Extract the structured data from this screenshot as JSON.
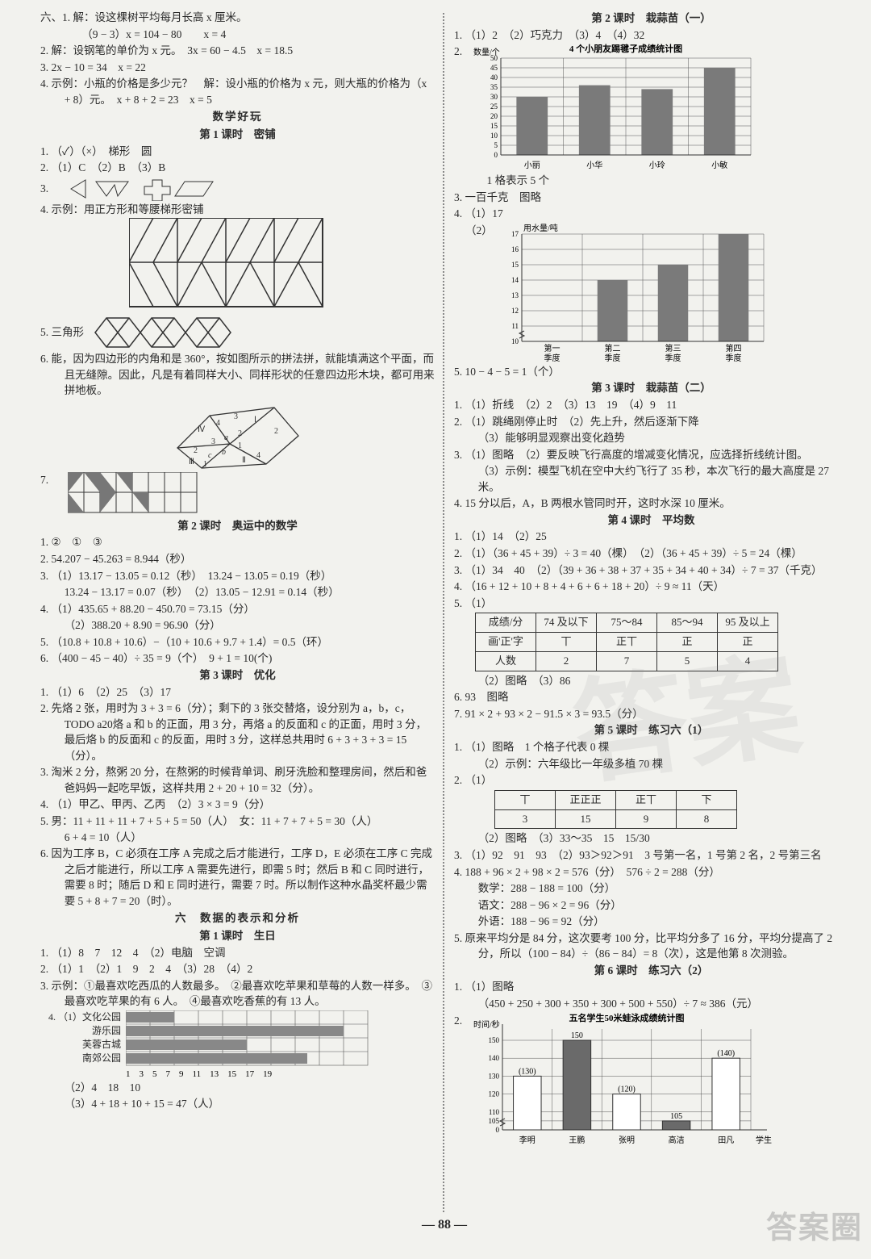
{
  "left": {
    "sec61": "六、1. 解：设这棵树平均每月长高 x 厘米。",
    "sec61b": "（9 − 3）x = 104 − 80　　x = 4",
    "sec62": "2. 解：设钢笔的单价为 x 元。　3x = 60 − 4.5　x = 18.5",
    "sec63": "3. 2x − 10 = 34　x = 22",
    "sec64": "4. 示例：小瓶的价格是多少元？　解：设小瓶的价格为 x 元，则大瓶的价格为（x + 8）元。　x + 8 + 2 = 23　x = 5",
    "fun_title": "数学好玩",
    "fun_l1": "第 1 课时　密铺",
    "f1_1": "1. （✓）（×）　梯形　圆",
    "f1_2": "2. （1）C　（2）B　（3）B",
    "f1_3": "3.",
    "f1_4": "4. 示例：用正方形和等腰梯形密铺",
    "f1_5": "5. 三角形",
    "f1_6": "6. 能，因为四边形的内角和是 360°，按如图所示的拼法拼，就能填满这个平面，而且无缝隙。因此，凡是有着同样大小、同样形状的任意四边形木块，都可用来拼地板。",
    "f1_7": "7.",
    "fun_l2": "第 2 课时　奥运中的数学",
    "f2_1": "1. ②　①　③",
    "f2_2": "2. 54.207 − 45.263 = 8.944（秒）",
    "f2_3": "3. （1）13.17 − 13.05 = 0.12（秒）　13.24 − 13.05 = 0.19（秒）",
    "f2_3b": "13.24 − 13.17 = 0.07（秒）　（2）13.05 − 12.91 = 0.14（秒）",
    "f2_4": "4. （1）435.65 + 88.20 − 450.70 = 73.15（分）",
    "f2_4b": "（2）388.20 + 8.90 = 96.90（分）",
    "f2_5": "5. （10.8 + 10.8 + 10.6）−（10 + 10.6 + 9.7 + 1.4）= 0.5（环）",
    "f2_6": "6. （400 − 45 − 40）÷ 35 = 9（个）　9 + 1 = 10(个)",
    "fun_l3": "第 3 课时　优化",
    "f3_1": "1. （1）6　（2）25　（3）17",
    "f3_2": "2. 先烙 2 张，用时为 3 + 3 = 6（分）；剩下的 3 张交替烙，设分别为 a，b，c，TODO a20烙 a 和 b 的正面，用 3 分，再烙 a 的反面和 c 的正面，用时 3 分，最后烙 b 的反面和 c 的反面，用时 3 分，这样总共用时 6 + 3 + 3 + 3 = 15（分）。",
    "f3_3": "3. 淘米 2 分，熬粥 20 分，在熬粥的时候背单词、刷牙洗脸和整理房间，然后和爸爸妈妈一起吃早饭，这样共用 2 + 20 + 10 = 32（分）。",
    "f3_4": "4. （1）甲乙、甲丙、乙丙　（2）3 × 3 = 9（分）",
    "f3_5": "5. 男：11 + 11 + 11 + 7 + 5 + 5 = 50（人）　女：11 + 7 + 7 + 5 = 30（人）\n6 + 4 = 10（人）",
    "f3_6": "6. 因为工序 B，C 必须在工序 A 完成之后才能进行，工序 D，E 必须在工序 C 完成之后才能进行，所以工序 A 需要先进行，即需 5 时；然后 B 和 C 同时进行，需要 8 时；随后 D 和 E 同时进行，需要 7 时。所以制作这种水晶奖杯最少需要 5 + 8 + 7 = 20（时）。",
    "six_title": "六　数据的表示和分析",
    "six_l1": "第 1 课时　生日",
    "s1_1": "1. （1）8　7　12　4　（2）电脑　空调",
    "s1_2": "2. （1）1　（2）1　9　2　4　（3）28　（4）2",
    "s1_3": "3. 示例：①最喜欢吃西瓜的人数最多。　②最喜欢吃苹果和草莓的人数一样多。　③最喜欢吃苹果的有 6 人。　④最喜欢吃香蕉的有 13 人。",
    "s1_4": "4. （1）文化公园",
    "s1_4a": "游乐园",
    "s1_4b": "芙蓉古城",
    "s1_4c": "南郊公园",
    "s1_4x": "1　3　5　7　9　11　13　15　17　19",
    "s1_4_2": "（2）4　18　10",
    "s1_4_3": "（3）4 + 18 + 10 + 15 = 47（人）"
  },
  "right": {
    "r_l2": "第 2 课时　栽蒜苗（一）",
    "r2_1": "1. （1）2　（2）巧克力　（3）4　（4）32",
    "r2_2t": "2.",
    "chart1_title": "4 个小朋友踢毽子成绩统计图",
    "chart1_ylabel": "数量/个",
    "chart1_y": [
      0,
      5,
      10,
      15,
      20,
      25,
      30,
      35,
      40,
      45,
      50
    ],
    "chart1_cats": [
      "小丽",
      "小华",
      "小玲",
      "小敏"
    ],
    "chart1_vals": [
      30,
      36,
      34,
      45
    ],
    "chart1_bar": "#7a7a7a",
    "r2_2n": "1 格表示 5 个",
    "r2_3": "3. 一百千克　图略",
    "r2_4_1": "4. （1）17",
    "r2_4_2": "（2）",
    "chart2_ylabel": "用水量/吨",
    "chart2_y": [
      10,
      11,
      12,
      13,
      14,
      15,
      16,
      17
    ],
    "chart2_cats": [
      "第一季度",
      "第二季度",
      "第三季度",
      "第四季度"
    ],
    "chart2_vals": [
      10,
      14,
      15,
      17
    ],
    "chart2_bar": "#7a7a7a",
    "r2_5": "5. 10 − 4 − 5 = 1（个）",
    "r_l3": "第 3 课时　栽蒜苗（二）",
    "r3_1": "1. （1）折线　（2）2　（3）13　19　（4）9　11",
    "r3_2": "2. （1）跳绳刚停止时　（2）先上升，然后逐渐下降",
    "r3_2b": "（3）能够明显观察出变化趋势",
    "r3_3": "3. （1）图略　（2）要反映飞行高度的增减变化情况，应选择折线统计图。",
    "r3_3b": "（3）示例：模型飞机在空中大约飞行了 35 秒，本次飞行的最大高度是 27 米。",
    "r3_4": "4. 15 分以后，A，B 两根水管同时开，这时水深 10 厘米。",
    "r_l4": "第 4 课时　平均数",
    "r4_1": "1. （1）14　（2）25",
    "r4_2": "2. （1）（36 + 45 + 39）÷ 3 = 40（棵）　（2）（36 + 45 + 39）÷ 5 = 24（棵）",
    "r4_3": "3. （1）34　40　（2）（39 + 36 + 38 + 37 + 35 + 34 + 40 + 34）÷ 7 = 37（千克）",
    "r4_4": "4. （16 + 12 + 10 + 8 + 4 + 6 + 6 + 18 + 20）÷ 9 ≈ 11（天）",
    "r4_5": "5. （1）",
    "table": {
      "headers": [
        "成绩/分",
        "74 及以下",
        "75～84",
        "85～94",
        "95 及以上"
      ],
      "tally": [
        "画'正'字",
        "丅",
        "正丅",
        "正",
        "正"
      ],
      "count": [
        "人数",
        "2",
        "7",
        "5",
        "4"
      ]
    },
    "r4_5b": "（2）图略　（3）86",
    "r4_6": "6. 93　图略",
    "r4_7": "7. 91 × 2 + 93 × 2 − 91.5 × 3 = 93.5（分）",
    "r_l5": "第 5 课时　练习六（1）",
    "r5_1": "1. （1）图略　1 个格子代表 0 棵",
    "r5_1b": "（2）示例：六年级比一年级多植 70 棵",
    "r5_2": "2. （1）",
    "table2": {
      "r1": [
        "丅",
        "正正正",
        "正丅",
        "下"
      ],
      "r2": [
        "3",
        "15",
        "9",
        "8"
      ]
    },
    "r5_2b": "（2）图略　（3）33～35　15　15/30",
    "r5_3": "3. （1）92　91　93　（2）93＞92＞91　3 号第一名，1 号第 2 名，2 号第三名",
    "r5_4": "4. 188 + 96 × 2 + 98 × 2 = 576（分）　576 ÷ 2 = 288（分）",
    "r5_4b": "数学：288 − 188 = 100（分）",
    "r5_4c": "语文：288 − 96 × 2 = 96（分）",
    "r5_4d": "外语：188 − 96 = 92（分）",
    "r5_5": "5. 原来平均分是 84 分，这次要考 100 分，比平均分多了 16 分，平均分提高了 2 分，所以（100 − 84）÷（86 − 84）= 8（次），这是他第 8 次测验。",
    "r_l6": "第 6 课时　练习六（2）",
    "r6_1": "1. （1）图略",
    "r6_1b": "（450 + 250 + 300 + 350 + 300 + 500 + 550）÷ 7 ≈ 386（元）",
    "r6_2": "2.",
    "chart3_title": "五名学生50米蛙泳成绩统计图",
    "chart3_ylabel": "时间/秒",
    "chart3_y": [
      0,
      105,
      110,
      120,
      130,
      140,
      150
    ],
    "chart3_cats": [
      "李明",
      "王鹏",
      "张明",
      "高洁",
      "田凡"
    ],
    "chart3_vals": [
      130,
      150,
      120,
      105,
      140
    ],
    "chart3_labels": [
      "(130)",
      "150",
      "(120)",
      "105",
      "(140)"
    ],
    "chart3_bar_dark": "#6a6a6a",
    "chart3_bar_light": "#ffffff"
  },
  "pageno": "— 88 —",
  "wm": "答案圈"
}
